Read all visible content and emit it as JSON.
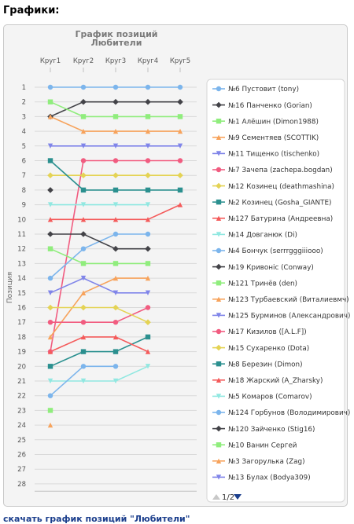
{
  "page": {
    "heading": "Графики:",
    "download_link": "скачать график позиций \"Любители\""
  },
  "chart_data": {
    "type": "line",
    "title": "График позиций",
    "subtitle": "Любители",
    "ylabel": "Позиция",
    "y_reversed": true,
    "ylim": [
      1,
      28
    ],
    "categories": [
      "Круг1",
      "Круг2",
      "Круг3",
      "Круг4",
      "Круг5"
    ],
    "legend_position": "right",
    "legend_page": "1/2",
    "series": [
      {
        "name": "№6 Пустовит (tony)",
        "color": "#7cb5ec",
        "marker": "circle",
        "values": [
          1,
          1,
          1,
          1,
          1
        ]
      },
      {
        "name": "№16 Панченко (Gorian)",
        "color": "#434348",
        "marker": "diamond",
        "values": [
          3,
          2,
          2,
          2,
          2
        ]
      },
      {
        "name": "№1 Алёшин (Dimon1988)",
        "color": "#90ed7d",
        "marker": "square",
        "values": [
          2,
          3,
          3,
          3,
          3
        ]
      },
      {
        "name": "№9 Сементяев (SCOTTIK)",
        "color": "#f7a35c",
        "marker": "triangle",
        "values": [
          3,
          4,
          4,
          4,
          4
        ]
      },
      {
        "name": "№11 Тищенко (tischenko)",
        "color": "#8085e9",
        "marker": "triangle-down",
        "values": [
          5,
          5,
          5,
          5,
          5
        ]
      },
      {
        "name": "№7 Зачепа (zachepa.bogdan)",
        "color": "#f15c80",
        "marker": "circle",
        "values": [
          19,
          6,
          6,
          6,
          6
        ]
      },
      {
        "name": "№12 Козинец (deathmashina)",
        "color": "#e4d354",
        "marker": "diamond",
        "values": [
          7,
          7,
          7,
          7,
          7
        ]
      },
      {
        "name": "№2 Козинец (Gosha_GIANTE)",
        "color": "#2b908f",
        "marker": "square",
        "values": [
          6,
          8,
          8,
          8,
          8
        ]
      },
      {
        "name": "№127 Батурина (Андреевна)",
        "color": "#f45b5b",
        "marker": "triangle",
        "values": [
          10,
          10,
          10,
          10,
          9
        ]
      },
      {
        "name": "№14 Довганюк (Di)",
        "color": "#91e8e1",
        "marker": "triangle-down",
        "values": [
          9,
          9,
          9,
          9,
          null
        ]
      },
      {
        "name": "№4 Бончук (serrrgggiiiooo)",
        "color": "#7cb5ec",
        "marker": "circle",
        "values": [
          14,
          12,
          11,
          11,
          null
        ]
      },
      {
        "name": "№19 Кривоніс (Conway)",
        "color": "#434348",
        "marker": "diamond",
        "values": [
          11,
          11,
          12,
          12,
          null
        ]
      },
      {
        "name": "№121 Тринёв (den)",
        "color": "#90ed7d",
        "marker": "square",
        "values": [
          12,
          13,
          13,
          13,
          null
        ]
      },
      {
        "name": "№123 Турбаевский (Виталиевмч)",
        "color": "#f7a35c",
        "marker": "triangle",
        "values": [
          18,
          15,
          14,
          14,
          null
        ]
      },
      {
        "name": "№125 Бурминов (Александрович)",
        "color": "#8085e9",
        "marker": "triangle-down",
        "values": [
          15,
          14,
          15,
          15,
          null
        ]
      },
      {
        "name": "№17 Кизилов ([A.L.F])",
        "color": "#f15c80",
        "marker": "circle",
        "values": [
          17,
          17,
          17,
          16,
          null
        ]
      },
      {
        "name": "№15 Сухаренко (Dota)",
        "color": "#e4d354",
        "marker": "diamond",
        "values": [
          16,
          16,
          16,
          17,
          null
        ]
      },
      {
        "name": "№8 Березин (Dimon)",
        "color": "#2b908f",
        "marker": "square",
        "values": [
          20,
          19,
          19,
          18,
          null
        ]
      },
      {
        "name": "№18 Жарский (A_Zharsky)",
        "color": "#f45b5b",
        "marker": "triangle",
        "values": [
          19,
          18,
          18,
          19,
          null
        ]
      },
      {
        "name": "№5 Комаров (Comarov)",
        "color": "#91e8e1",
        "marker": "triangle-down",
        "values": [
          21,
          21,
          21,
          20,
          null
        ]
      },
      {
        "name": "№124 Горбунов (Володимирович)",
        "color": "#7cb5ec",
        "marker": "circle",
        "values": [
          22,
          20,
          20,
          null,
          null
        ]
      },
      {
        "name": "№120 Зайченко (Stig16)",
        "color": "#434348",
        "marker": "diamond",
        "values": [
          8,
          null,
          null,
          null,
          null
        ]
      },
      {
        "name": "№10 Ванин Сергей",
        "color": "#90ed7d",
        "marker": "square",
        "values": [
          23,
          null,
          null,
          null,
          null
        ]
      },
      {
        "name": "№3 Загорулька (Zag)",
        "color": "#f7a35c",
        "marker": "triangle",
        "values": [
          24,
          null,
          null,
          null,
          null
        ]
      },
      {
        "name": "№13 Булах (Bodya309)",
        "color": "#8085e9",
        "marker": "triangle-down",
        "values": [
          null,
          null,
          null,
          null,
          null
        ]
      }
    ]
  }
}
